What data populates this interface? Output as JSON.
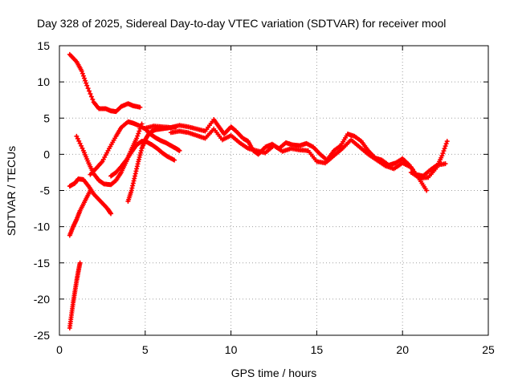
{
  "chart_data": {
    "type": "scatter",
    "title": "Day 328 of 2025, Sidereal Day-to-day VTEC variation (SDTVAR) for receiver mool",
    "xlabel": "GPS time / hours",
    "ylabel": "SDTVAR / TECUs",
    "xlim": [
      0,
      25
    ],
    "ylim": [
      -25,
      15
    ],
    "xticks": [
      0,
      5,
      10,
      15,
      20,
      25
    ],
    "yticks": [
      -25,
      -20,
      -15,
      -10,
      -5,
      0,
      5,
      10,
      15
    ],
    "grid": true,
    "marker": "+",
    "series": [
      {
        "name": "track-1",
        "color": "#ff0000",
        "x": [
          0.6,
          1.0,
          1.3,
          1.6,
          2.0,
          2.3,
          2.7,
          3.0,
          3.3,
          3.6,
          4.0,
          4.3,
          4.7
        ],
        "y": [
          13.8,
          12.8,
          11.5,
          9.5,
          7.2,
          6.3,
          6.3,
          6.0,
          5.9,
          6.6,
          7.0,
          6.7,
          6.5
        ]
      },
      {
        "name": "track-2",
        "color": "#ff0000",
        "x": [
          1.0,
          1.4,
          1.7,
          2.0,
          2.3,
          2.6,
          3.0,
          3.3,
          3.6,
          3.9,
          4.2,
          4.5,
          4.8
        ],
        "y": [
          2.5,
          0.5,
          -1.2,
          -2.7,
          -3.6,
          -4.1,
          -4.2,
          -3.6,
          -2.5,
          -1.0,
          0.7,
          2.2,
          4.2
        ]
      },
      {
        "name": "track-3",
        "color": "#ff0000",
        "x": [
          0.6,
          0.9,
          1.1,
          1.4,
          1.7,
          2.0,
          2.4,
          2.8,
          3.0
        ],
        "y": [
          -4.4,
          -4.0,
          -3.4,
          -3.5,
          -4.4,
          -5.5,
          -6.5,
          -7.5,
          -8.2
        ]
      },
      {
        "name": "track-4",
        "color": "#ff0000",
        "x": [
          0.6,
          0.8,
          1.0,
          1.2,
          1.5,
          1.8
        ],
        "y": [
          -11.2,
          -10.0,
          -9.0,
          -7.8,
          -6.4,
          -5.0
        ]
      },
      {
        "name": "track-5",
        "color": "#ff0000",
        "x": [
          0.6,
          0.7,
          0.8,
          0.9,
          1.0,
          1.1,
          1.2
        ],
        "y": [
          -24.0,
          -22.2,
          -20.5,
          -19.0,
          -17.5,
          -16.2,
          -15.0
        ]
      },
      {
        "name": "track-6",
        "color": "#ff0000",
        "x": [
          1.8,
          2.2,
          2.5,
          2.9,
          3.3,
          3.6,
          4.0,
          4.3,
          4.6,
          5.0,
          5.3,
          5.6,
          5.9,
          6.2,
          6.5,
          6.8,
          7.0
        ],
        "y": [
          -2.8,
          -1.8,
          -1.0,
          0.8,
          2.5,
          3.7,
          4.5,
          4.3,
          4.0,
          3.5,
          2.8,
          2.3,
          1.9,
          1.6,
          1.2,
          0.8,
          0.5
        ]
      },
      {
        "name": "track-7",
        "color": "#ff0000",
        "x": [
          3.0,
          3.3,
          3.6,
          3.9,
          4.2,
          4.5,
          4.8,
          5.1,
          5.4,
          5.7,
          6.0,
          6.3,
          6.7
        ],
        "y": [
          -3.0,
          -2.5,
          -1.7,
          -0.8,
          0.3,
          1.3,
          1.8,
          1.7,
          1.3,
          0.8,
          0.2,
          -0.3,
          -0.8
        ]
      },
      {
        "name": "track-8",
        "color": "#ff0000",
        "x": [
          4.0,
          4.2,
          4.4,
          4.6,
          4.8,
          5.0,
          5.2,
          5.4,
          5.6,
          5.9,
          6.2,
          6.5,
          6.8
        ],
        "y": [
          -6.5,
          -5.0,
          -3.0,
          -1.0,
          0.8,
          2.0,
          2.8,
          3.2,
          3.4,
          3.5,
          3.6,
          3.7,
          3.8
        ]
      },
      {
        "name": "track-9",
        "color": "#ff0000",
        "x": [
          5.0,
          5.5,
          6.0,
          6.5,
          7.0,
          7.5,
          8.0,
          8.5,
          9.0,
          9.3,
          9.6,
          10.0,
          10.3,
          10.7,
          11.0,
          11.3,
          11.6,
          12.0,
          12.4,
          12.8,
          13.2,
          13.6,
          14.0,
          14.4,
          14.8,
          15.2,
          15.6,
          16.0,
          16.4,
          16.8,
          17.2,
          17.6,
          18.0,
          18.4,
          18.8,
          19.2,
          19.6,
          20.0,
          20.4,
          20.8,
          21.2,
          21.6,
          22.0,
          22.5
        ],
        "y": [
          3.6,
          3.9,
          3.8,
          3.7,
          4.0,
          3.8,
          3.5,
          3.2,
          4.8,
          3.8,
          2.8,
          3.8,
          3.2,
          2.2,
          1.8,
          0.5,
          0.0,
          1.0,
          1.4,
          0.8,
          1.6,
          1.3,
          1.2,
          1.5,
          1.0,
          0.0,
          -0.8,
          0.5,
          1.2,
          2.8,
          2.5,
          1.8,
          0.5,
          -0.5,
          -0.8,
          -1.5,
          -1.2,
          -0.6,
          -1.5,
          -2.8,
          -3.0,
          -2.2,
          -1.5,
          -1.3
        ]
      },
      {
        "name": "track-10",
        "color": "#ff0000",
        "x": [
          6.5,
          7.0,
          7.5,
          8.0,
          8.5,
          9.0,
          9.5,
          10.0,
          10.5,
          11.0,
          11.5,
          12.0,
          12.5,
          13.0,
          13.5,
          14.0,
          14.5,
          15.0,
          15.5,
          16.0,
          16.5,
          17.0,
          17.5,
          18.0,
          18.5,
          19.0,
          19.5,
          20.0,
          20.5,
          21.0,
          21.4
        ],
        "y": [
          3.0,
          3.2,
          3.0,
          2.6,
          2.2,
          3.5,
          2.0,
          2.6,
          1.6,
          0.8,
          0.5,
          0.2,
          1.2,
          0.4,
          0.8,
          0.6,
          0.5,
          -1.0,
          -1.2,
          -0.2,
          0.8,
          2.0,
          1.0,
          0.0,
          -0.8,
          -1.6,
          -2.0,
          -1.2,
          -1.8,
          -3.5,
          -5.0
        ]
      },
      {
        "name": "track-11",
        "color": "#ff0000",
        "x": [
          20.5,
          21.0,
          21.5,
          22.0,
          22.3,
          22.6
        ],
        "y": [
          -2.5,
          -3.3,
          -3.2,
          -1.8,
          -0.2,
          1.8
        ]
      }
    ]
  }
}
